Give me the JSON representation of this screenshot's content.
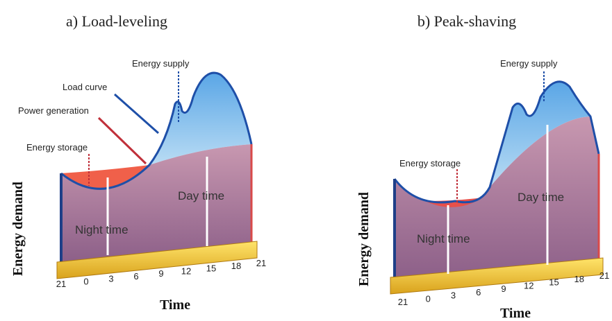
{
  "panels": [
    {
      "title": "a) Load-leveling",
      "y_label": "Energy demand",
      "x_label": "Time",
      "labels": {
        "energy_supply": "Energy supply",
        "load_curve": "Load curve",
        "power_generation": "Power generation",
        "energy_storage": "Energy storage",
        "night_time": "Night time",
        "day_time": "Day time"
      },
      "ticks": [
        "21",
        "0",
        "3",
        "6",
        "9",
        "12",
        "15",
        "18",
        "21"
      ]
    },
    {
      "title": "b) Peak-shaving",
      "y_label": "Energy demand",
      "x_label": "Time",
      "labels": {
        "energy_supply": "Energy supply",
        "energy_storage": "Energy storage",
        "night_time": "Night time",
        "day_time": "Day time"
      },
      "ticks": [
        "21",
        "0",
        "3",
        "6",
        "9",
        "12",
        "15",
        "18",
        "21"
      ]
    }
  ]
}
